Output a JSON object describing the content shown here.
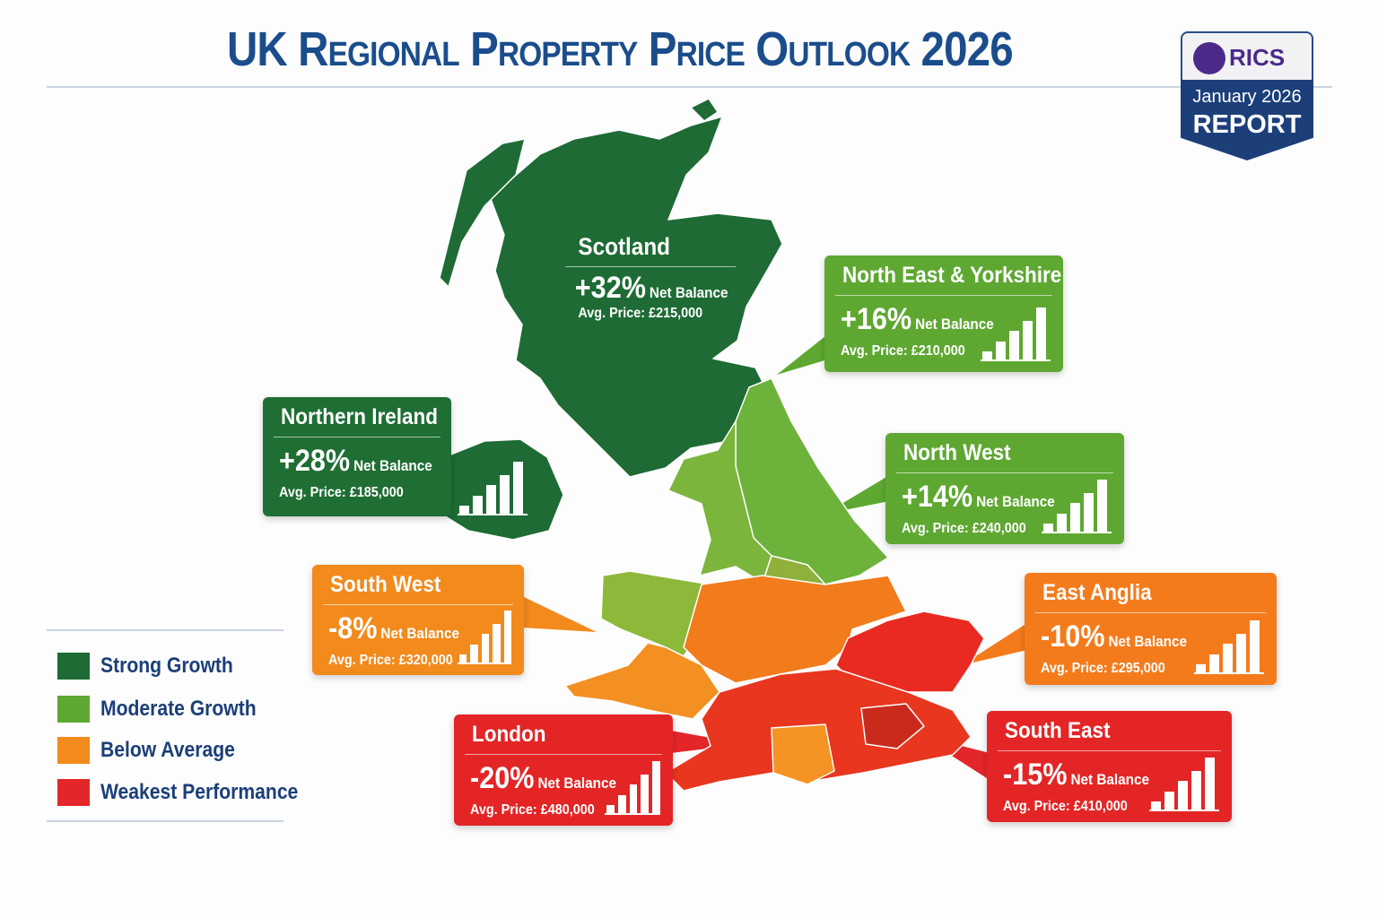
{
  "title": "UK Regional Property Price Outlook 2026",
  "badge": {
    "logo_text": "RICS",
    "month": "January 2026",
    "label": "REPORT"
  },
  "net_label": "Net Balance",
  "colors": {
    "strong": "#1e6b35",
    "moderate": "#5ea832",
    "below": "#f28a1c",
    "weakest": "#e3262a",
    "title": "#1b4d8c"
  },
  "regions": {
    "scotland": {
      "name": "Scotland",
      "net_balance": "+32%",
      "avg_price": "Avg. Price: £215,000",
      "category": "Strong Growth"
    },
    "ne_yorkshire": {
      "name": "North East & Yorkshire",
      "net_balance": "+16%",
      "avg_price": "Avg. Price: £210,000",
      "category": "Moderate Growth"
    },
    "northern_ireland": {
      "name": "Northern Ireland",
      "net_balance": "+28%",
      "avg_price": "Avg. Price: £185,000",
      "category": "Strong Growth"
    },
    "north_west": {
      "name": "North West",
      "net_balance": "+14%",
      "avg_price": "Avg. Price: £240,000",
      "category": "Moderate Growth"
    },
    "south_west": {
      "name": "South West",
      "net_balance": "-8%",
      "avg_price": "Avg. Price: £320,000",
      "category": "Below Average"
    },
    "east_anglia": {
      "name": "East Anglia",
      "net_balance": "-10%",
      "avg_price": "Avg. Price: £295,000",
      "category": "Below Average"
    },
    "london": {
      "name": "London",
      "net_balance": "-20%",
      "avg_price": "Avg. Price: £480,000",
      "category": "Weakest Performance"
    },
    "south_east": {
      "name": "South East",
      "net_balance": "-15%",
      "avg_price": "Avg. Price: £410,000",
      "category": "Weakest Performance"
    }
  },
  "legend": [
    {
      "label": "Strong Growth",
      "color": "#1e6b35"
    },
    {
      "label": "Moderate Growth",
      "color": "#5ea832"
    },
    {
      "label": "Below Average",
      "color": "#f28a1c"
    },
    {
      "label": "Weakest Performance",
      "color": "#e3262a"
    }
  ]
}
